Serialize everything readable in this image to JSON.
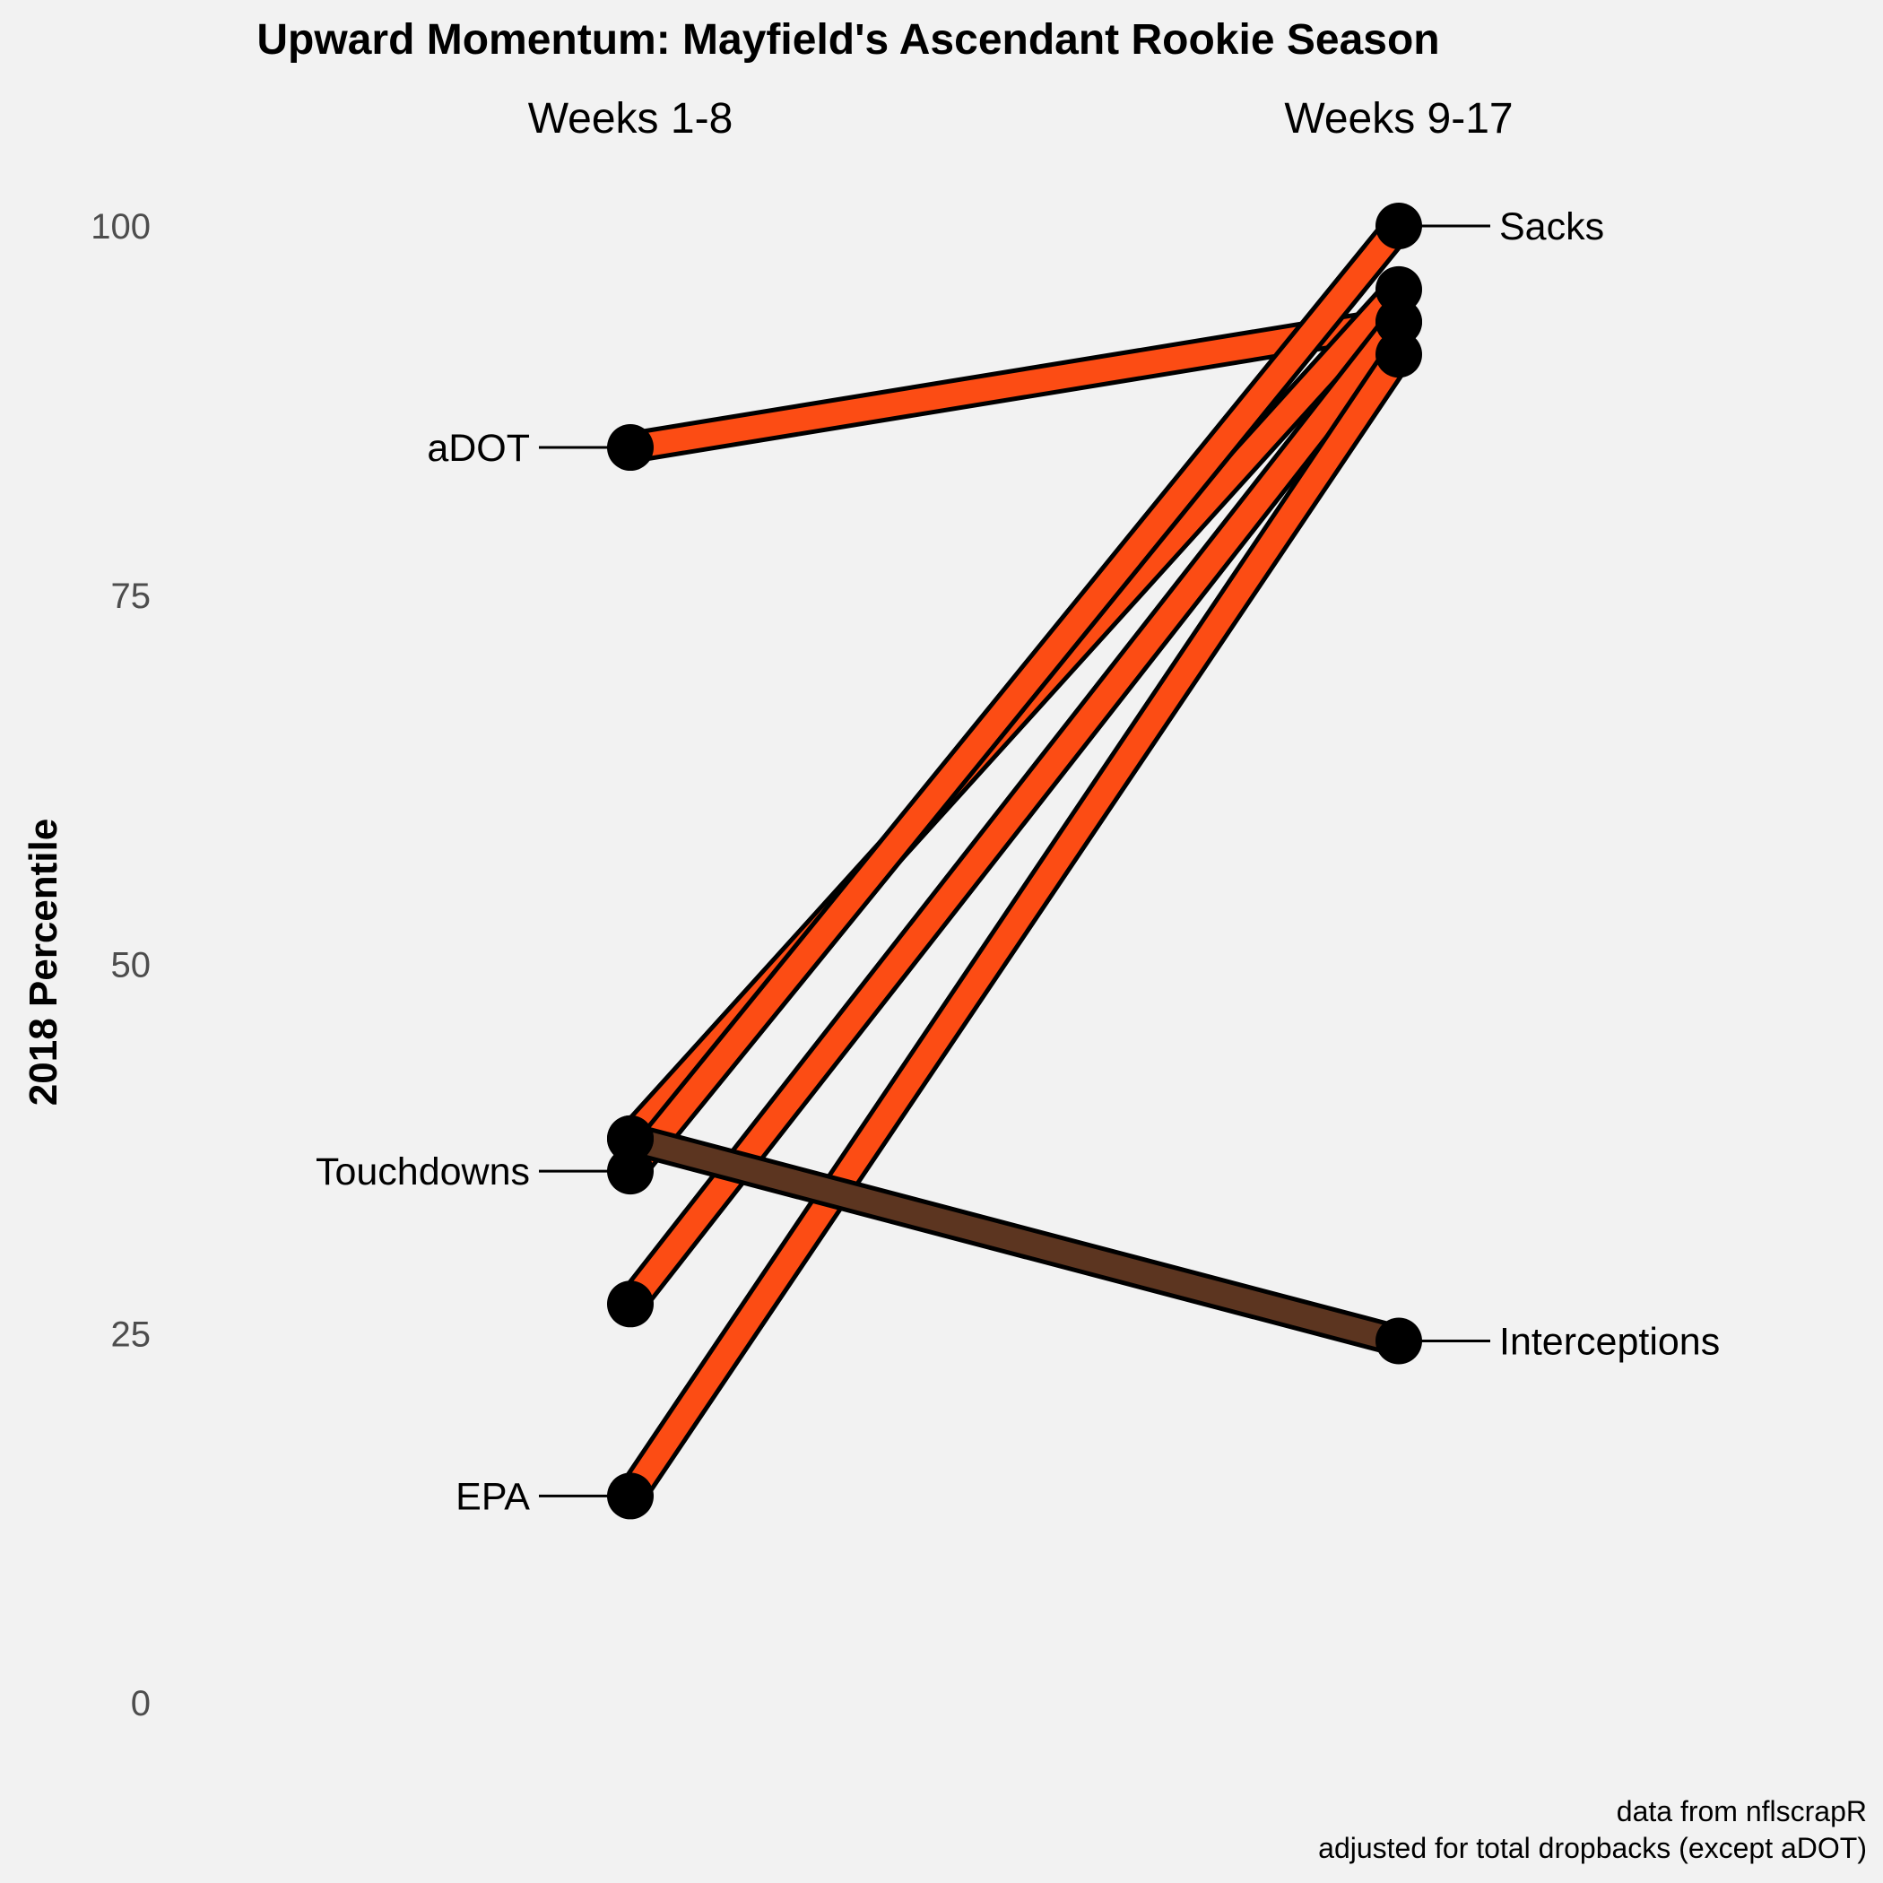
{
  "chart_data": {
    "type": "line",
    "title": "Upward Momentum: Mayfield's Ascendant Rookie Season",
    "categories": [
      "Weeks 1-8",
      "Weeks 9-17"
    ],
    "ylabel": "2018 Percentile",
    "ylim": [
      0,
      100
    ],
    "yticks": [
      0,
      25,
      50,
      75,
      100
    ],
    "grid": false,
    "legend": "none",
    "series": [
      {
        "values": [
          85,
          93.5
        ],
        "color": "#fc4c14"
      },
      {
        "values": [
          38.2,
          95.7
        ],
        "color": "#fc4c14"
      },
      {
        "values": [
          36,
          100
        ],
        "color": "#fc4c14"
      },
      {
        "values": [
          27,
          93.5
        ],
        "color": "#fc4c14"
      },
      {
        "values": [
          14,
          91.3
        ],
        "color": "#fc4c14"
      },
      {
        "values": [
          38.2,
          24.5
        ],
        "color": "#5c3520"
      }
    ],
    "annotations": [
      {
        "text": "aDOT",
        "side": "left",
        "value": 85
      },
      {
        "text": "Touchdowns",
        "side": "left",
        "value": 36
      },
      {
        "text": "EPA",
        "side": "left",
        "value": 14
      },
      {
        "text": "Sacks",
        "side": "right",
        "value": 100
      },
      {
        "text": "Interceptions",
        "side": "right",
        "value": 24.5
      }
    ],
    "caption": [
      "data from nflscrapR",
      "adjusted for total dropbacks (except aDOT)"
    ]
  }
}
